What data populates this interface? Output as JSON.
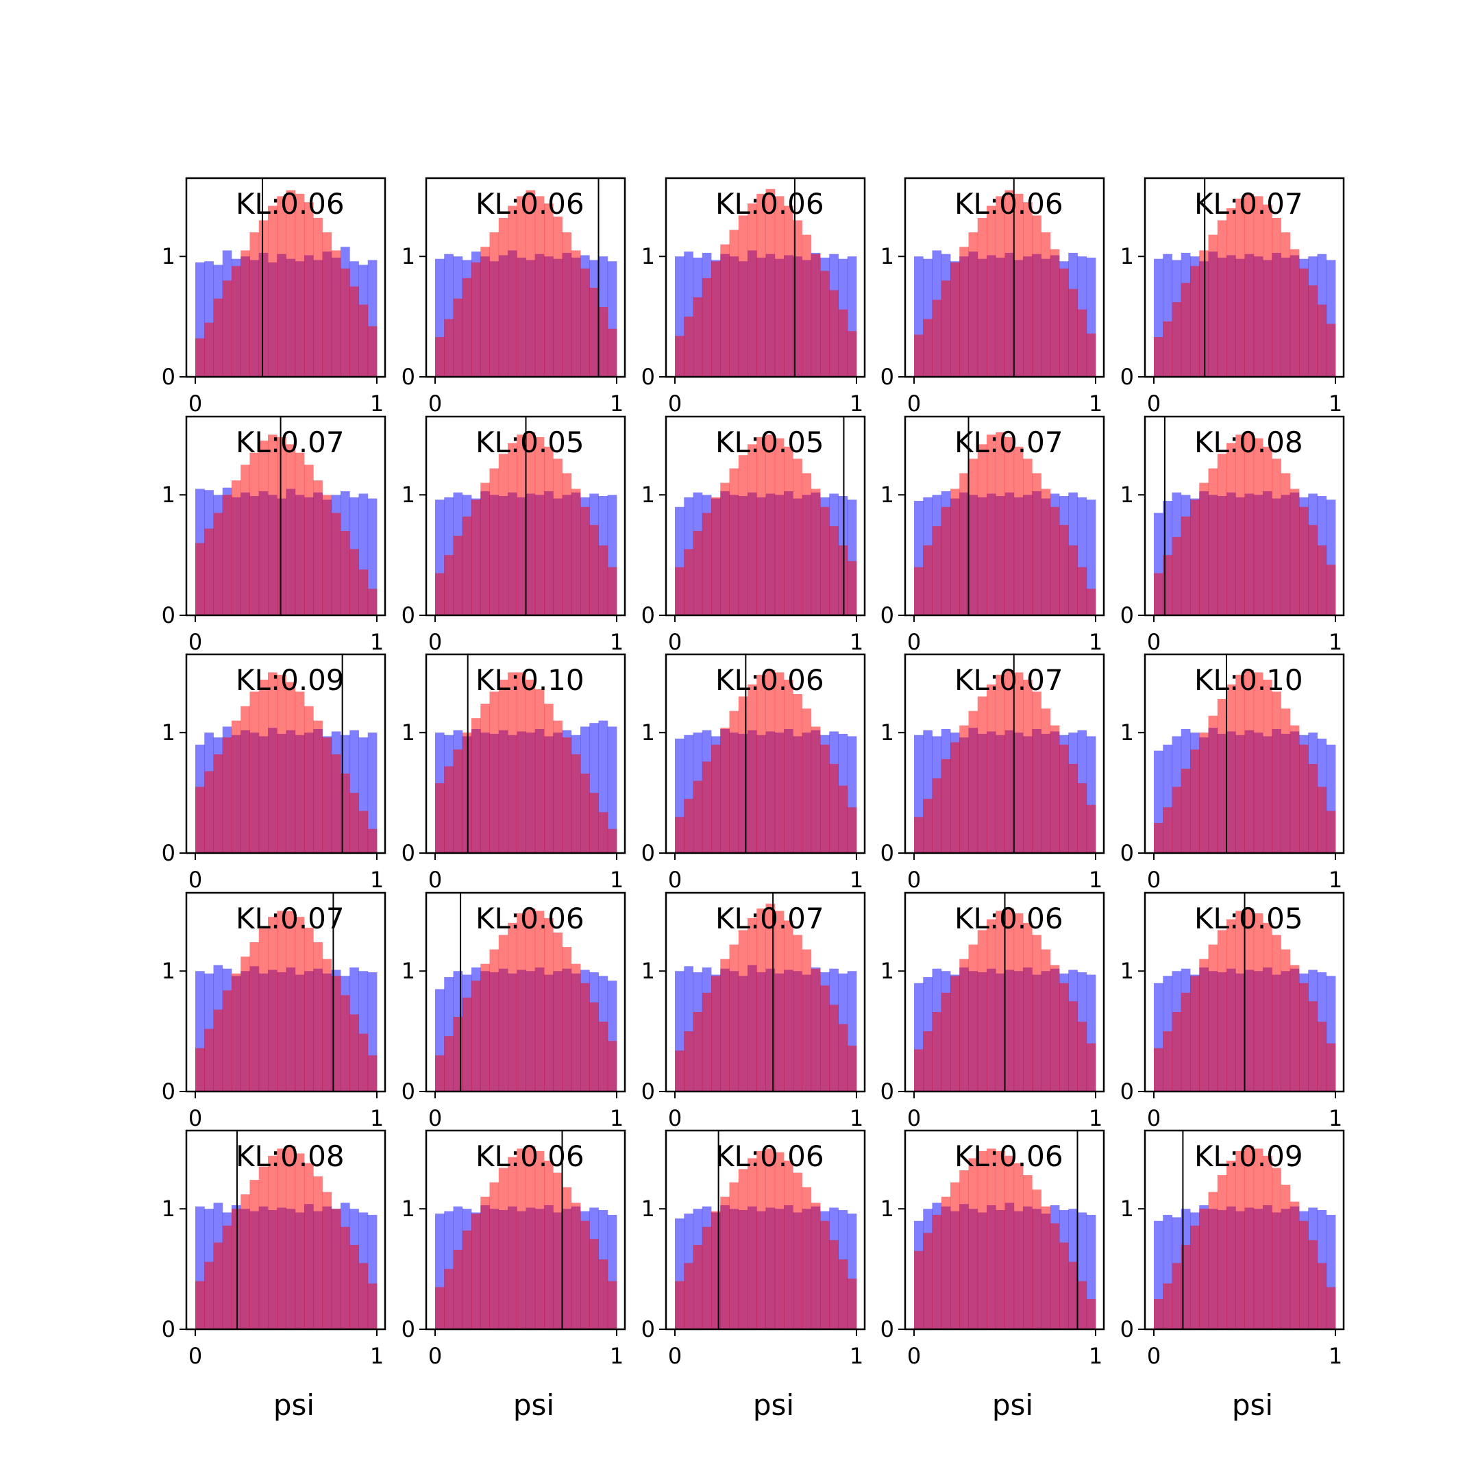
{
  "colors": {
    "series_a": "#0000ff",
    "series_b": "#ff0000",
    "bar_opacity": 0.5,
    "marker_line": "#000000",
    "frame": "#000000"
  },
  "chart_data": {
    "type": "bar",
    "layout": "5x5 grid of overlaid histograms",
    "bins": 20,
    "xlim": [
      0,
      1
    ],
    "ylim": [
      0,
      1.65
    ],
    "xticks": [
      "0",
      "1"
    ],
    "yticks": [
      "0",
      "1"
    ],
    "xlabel": "psi",
    "series_legend": [
      {
        "color": "#0000ff",
        "alpha": 0.5
      },
      {
        "color": "#ff0000",
        "alpha": 0.5
      }
    ],
    "panels": [
      {
        "kl": "KL:0.06",
        "marker_x": 0.37,
        "series_a": [
          0.95,
          0.96,
          0.93,
          1.05,
          0.98,
          1.0,
          0.97,
          1.03,
          0.95,
          1.02,
          0.98,
          0.96,
          1.01,
          0.97,
          1.04,
          0.99,
          1.08,
          0.96,
          0.93,
          0.97
        ],
        "series_b": [
          0.32,
          0.45,
          0.65,
          0.8,
          0.92,
          1.05,
          1.2,
          1.3,
          1.42,
          1.5,
          1.55,
          1.52,
          1.45,
          1.32,
          1.2,
          1.05,
          0.9,
          0.75,
          0.6,
          0.42
        ]
      },
      {
        "kl": "KL:0.06",
        "marker_x": 0.9,
        "series_a": [
          0.98,
          1.02,
          1.0,
          0.97,
          1.04,
          1.0,
          0.96,
          1.01,
          1.05,
          0.99,
          0.97,
          1.02,
          1.0,
          0.98,
          1.03,
          0.99,
          1.01,
          0.97,
          1.0,
          0.96
        ],
        "series_b": [
          0.33,
          0.48,
          0.65,
          0.82,
          0.95,
          1.08,
          1.2,
          1.32,
          1.42,
          1.5,
          1.55,
          1.5,
          1.44,
          1.33,
          1.2,
          1.05,
          0.9,
          0.74,
          0.58,
          0.4
        ]
      },
      {
        "kl": "KL:0.06",
        "marker_x": 0.66,
        "series_a": [
          1.0,
          1.04,
          0.99,
          1.03,
          0.97,
          1.02,
          1.0,
          0.96,
          1.05,
          0.99,
          1.02,
          0.98,
          1.01,
          1.0,
          0.97,
          1.03,
          0.99,
          1.02,
          0.98,
          1.0
        ],
        "series_b": [
          0.34,
          0.5,
          0.66,
          0.82,
          0.96,
          1.1,
          1.22,
          1.34,
          1.44,
          1.52,
          1.56,
          1.5,
          1.42,
          1.3,
          1.18,
          1.02,
          0.88,
          0.72,
          0.56,
          0.38
        ]
      },
      {
        "kl": "KL:0.06",
        "marker_x": 0.55,
        "series_a": [
          1.0,
          0.98,
          1.05,
          1.02,
          0.96,
          1.0,
          1.04,
          0.98,
          1.01,
          0.99,
          1.03,
          0.97,
          1.0,
          1.02,
          0.98,
          1.01,
          0.96,
          1.03,
          1.0,
          0.99
        ],
        "series_b": [
          0.35,
          0.48,
          0.64,
          0.8,
          0.95,
          1.08,
          1.2,
          1.32,
          1.42,
          1.5,
          1.55,
          1.52,
          1.45,
          1.34,
          1.2,
          1.06,
          0.9,
          0.73,
          0.56,
          0.36
        ]
      },
      {
        "kl": "KL:0.07",
        "marker_x": 0.28,
        "series_a": [
          0.98,
          1.02,
          0.97,
          1.03,
          1.0,
          0.96,
          1.04,
          0.99,
          1.01,
          0.98,
          1.02,
          1.0,
          0.97,
          1.03,
          0.99,
          1.01,
          0.98,
          1.0,
          1.02,
          0.97
        ],
        "series_b": [
          0.33,
          0.46,
          0.62,
          0.78,
          0.92,
          1.05,
          1.18,
          1.3,
          1.4,
          1.48,
          1.52,
          1.5,
          1.43,
          1.32,
          1.2,
          1.06,
          0.9,
          0.76,
          0.6,
          0.44
        ]
      },
      {
        "kl": "KL:0.07",
        "marker_x": 0.47,
        "series_a": [
          1.05,
          1.04,
          1.0,
          1.06,
          0.98,
          1.02,
          0.99,
          1.03,
          1.0,
          0.97,
          1.05,
          1.0,
          0.98,
          1.02,
          0.96,
          1.0,
          1.03,
          0.98,
          1.01,
          0.97
        ],
        "series_b": [
          0.6,
          0.72,
          0.85,
          1.0,
          1.12,
          1.25,
          1.35,
          1.45,
          1.5,
          1.48,
          1.42,
          1.35,
          1.25,
          1.12,
          1.0,
          0.85,
          0.7,
          0.55,
          0.38,
          0.22
        ]
      },
      {
        "kl": "KL:0.05",
        "marker_x": 0.5,
        "series_a": [
          0.96,
          0.98,
          1.02,
          1.0,
          0.97,
          1.03,
          1.0,
          0.99,
          1.02,
          0.98,
          1.01,
          1.0,
          1.03,
          0.97,
          1.0,
          1.02,
          0.98,
          1.01,
          0.99,
          1.0
        ],
        "series_b": [
          0.35,
          0.5,
          0.66,
          0.82,
          0.96,
          1.1,
          1.22,
          1.34,
          1.43,
          1.5,
          1.52,
          1.48,
          1.4,
          1.3,
          1.18,
          1.05,
          0.9,
          0.75,
          0.58,
          0.4
        ]
      },
      {
        "kl": "KL:0.05",
        "marker_x": 0.93,
        "series_a": [
          0.9,
          0.98,
          1.02,
          1.0,
          0.97,
          1.03,
          1.0,
          0.99,
          1.02,
          0.98,
          1.01,
          1.0,
          1.03,
          0.97,
          1.0,
          1.02,
          0.98,
          1.01,
          0.99,
          0.96
        ],
        "series_b": [
          0.4,
          0.55,
          0.7,
          0.85,
          0.98,
          1.1,
          1.22,
          1.33,
          1.42,
          1.48,
          1.5,
          1.47,
          1.4,
          1.3,
          1.18,
          1.05,
          0.9,
          0.74,
          0.58,
          0.45
        ]
      },
      {
        "kl": "KL:0.07",
        "marker_x": 0.3,
        "series_a": [
          0.95,
          0.98,
          1.0,
          1.03,
          0.97,
          1.02,
          1.0,
          0.98,
          1.01,
          0.99,
          1.02,
          0.98,
          1.0,
          1.03,
          0.97,
          1.01,
          0.99,
          1.02,
          0.98,
          0.96
        ],
        "series_b": [
          0.4,
          0.58,
          0.74,
          0.9,
          1.05,
          1.18,
          1.3,
          1.42,
          1.5,
          1.52,
          1.48,
          1.4,
          1.3,
          1.18,
          1.05,
          0.9,
          0.75,
          0.58,
          0.4,
          0.22
        ]
      },
      {
        "kl": "KL:0.08",
        "marker_x": 0.06,
        "series_a": [
          0.85,
          0.95,
          1.02,
          1.0,
          0.97,
          1.03,
          1.0,
          0.99,
          1.02,
          0.98,
          1.01,
          1.0,
          1.03,
          0.97,
          1.0,
          1.02,
          0.98,
          1.01,
          0.99,
          0.96
        ],
        "series_b": [
          0.35,
          0.5,
          0.65,
          0.82,
          0.96,
          1.1,
          1.22,
          1.34,
          1.43,
          1.5,
          1.52,
          1.47,
          1.4,
          1.3,
          1.18,
          1.05,
          0.9,
          0.75,
          0.58,
          0.42
        ]
      },
      {
        "kl": "KL:0.09",
        "marker_x": 0.81,
        "series_a": [
          0.9,
          1.0,
          0.96,
          1.05,
          0.98,
          1.02,
          1.0,
          0.97,
          1.04,
          0.99,
          1.02,
          0.98,
          1.0,
          1.03,
          0.97,
          1.01,
          0.98,
          1.02,
          0.96,
          1.0
        ],
        "series_b": [
          0.55,
          0.68,
          0.82,
          0.96,
          1.1,
          1.22,
          1.34,
          1.44,
          1.5,
          1.48,
          1.42,
          1.34,
          1.22,
          1.1,
          0.96,
          0.82,
          0.66,
          0.5,
          0.35,
          0.2
        ]
      },
      {
        "kl": "KL:0.10",
        "marker_x": 0.18,
        "series_a": [
          1.0,
          0.98,
          1.02,
          0.97,
          1.03,
          1.0,
          0.99,
          1.02,
          0.98,
          1.01,
          1.0,
          1.03,
          0.97,
          1.0,
          1.02,
          0.98,
          1.05,
          1.08,
          1.1,
          1.05
        ],
        "series_b": [
          0.58,
          0.72,
          0.86,
          1.0,
          1.12,
          1.24,
          1.34,
          1.44,
          1.5,
          1.5,
          1.44,
          1.36,
          1.24,
          1.1,
          0.96,
          0.82,
          0.66,
          0.5,
          0.34,
          0.2
        ]
      },
      {
        "kl": "KL:0.06",
        "marker_x": 0.39,
        "series_a": [
          0.95,
          0.98,
          1.0,
          1.02,
          0.97,
          1.03,
          1.0,
          0.99,
          1.02,
          0.98,
          1.01,
          1.0,
          1.03,
          0.97,
          1.0,
          1.02,
          0.98,
          1.01,
          0.99,
          0.97
        ],
        "series_b": [
          0.3,
          0.45,
          0.6,
          0.76,
          0.9,
          1.04,
          1.18,
          1.3,
          1.4,
          1.48,
          1.52,
          1.5,
          1.44,
          1.32,
          1.2,
          1.05,
          0.9,
          0.74,
          0.56,
          0.38
        ]
      },
      {
        "kl": "KL:0.07",
        "marker_x": 0.55,
        "series_a": [
          0.98,
          1.02,
          0.97,
          1.03,
          1.0,
          0.96,
          1.04,
          0.99,
          1.01,
          0.98,
          1.02,
          1.0,
          0.97,
          1.03,
          0.99,
          1.01,
          0.98,
          1.0,
          1.02,
          0.97
        ],
        "series_b": [
          0.3,
          0.45,
          0.62,
          0.78,
          0.92,
          1.06,
          1.18,
          1.3,
          1.4,
          1.48,
          1.52,
          1.5,
          1.44,
          1.34,
          1.2,
          1.06,
          0.9,
          0.74,
          0.58,
          0.4
        ]
      },
      {
        "kl": "KL:0.10",
        "marker_x": 0.4,
        "series_a": [
          0.85,
          0.9,
          0.97,
          1.03,
          1.0,
          0.96,
          1.04,
          0.99,
          1.01,
          0.98,
          1.02,
          1.0,
          0.97,
          1.03,
          0.99,
          1.01,
          0.98,
          1.0,
          0.95,
          0.9
        ],
        "series_b": [
          0.25,
          0.38,
          0.55,
          0.7,
          0.86,
          1.0,
          1.14,
          1.28,
          1.4,
          1.48,
          1.52,
          1.5,
          1.44,
          1.34,
          1.2,
          1.06,
          0.9,
          0.74,
          0.55,
          0.35
        ]
      },
      {
        "kl": "KL:0.07",
        "marker_x": 0.76,
        "series_a": [
          1.0,
          0.98,
          1.05,
          1.02,
          0.96,
          1.0,
          1.04,
          0.98,
          1.01,
          0.99,
          1.03,
          0.97,
          1.0,
          1.02,
          0.98,
          1.01,
          0.96,
          1.03,
          1.0,
          0.99
        ],
        "series_b": [
          0.36,
          0.52,
          0.68,
          0.84,
          0.98,
          1.12,
          1.24,
          1.36,
          1.45,
          1.5,
          1.5,
          1.45,
          1.36,
          1.24,
          1.1,
          0.96,
          0.8,
          0.64,
          0.48,
          0.3
        ]
      },
      {
        "kl": "KL:0.06",
        "marker_x": 0.14,
        "series_a": [
          0.85,
          0.95,
          1.0,
          0.97,
          1.03,
          1.0,
          0.99,
          1.02,
          0.98,
          1.01,
          1.0,
          1.03,
          0.97,
          1.0,
          1.02,
          0.98,
          1.01,
          0.99,
          0.96,
          0.92
        ],
        "series_b": [
          0.3,
          0.46,
          0.62,
          0.78,
          0.92,
          1.06,
          1.18,
          1.3,
          1.4,
          1.48,
          1.52,
          1.5,
          1.44,
          1.32,
          1.2,
          1.06,
          0.9,
          0.74,
          0.58,
          0.42
        ]
      },
      {
        "kl": "KL:0.07",
        "marker_x": 0.54,
        "series_a": [
          1.0,
          1.04,
          0.99,
          1.03,
          0.97,
          1.02,
          1.0,
          0.96,
          1.05,
          0.99,
          1.02,
          0.98,
          1.01,
          1.0,
          0.97,
          1.03,
          0.99,
          1.02,
          0.98,
          1.0
        ],
        "series_b": [
          0.34,
          0.5,
          0.66,
          0.82,
          0.96,
          1.1,
          1.22,
          1.34,
          1.44,
          1.52,
          1.56,
          1.5,
          1.42,
          1.3,
          1.18,
          1.02,
          0.88,
          0.72,
          0.56,
          0.38
        ]
      },
      {
        "kl": "KL:0.06",
        "marker_x": 0.5,
        "series_a": [
          0.9,
          0.95,
          1.02,
          1.0,
          0.97,
          1.03,
          1.0,
          0.99,
          1.02,
          0.98,
          1.01,
          1.0,
          1.03,
          0.97,
          1.0,
          1.02,
          0.98,
          1.01,
          0.99,
          0.97
        ],
        "series_b": [
          0.35,
          0.5,
          0.66,
          0.82,
          0.96,
          1.1,
          1.22,
          1.34,
          1.43,
          1.5,
          1.52,
          1.48,
          1.4,
          1.3,
          1.18,
          1.05,
          0.9,
          0.75,
          0.58,
          0.4
        ]
      },
      {
        "kl": "KL:0.05",
        "marker_x": 0.5,
        "series_a": [
          0.9,
          0.96,
          1.0,
          1.02,
          0.97,
          1.03,
          1.0,
          0.99,
          1.02,
          0.98,
          1.01,
          1.0,
          1.03,
          0.97,
          1.0,
          1.02,
          0.98,
          1.01,
          0.99,
          0.96
        ],
        "series_b": [
          0.36,
          0.5,
          0.66,
          0.82,
          0.96,
          1.1,
          1.22,
          1.34,
          1.43,
          1.5,
          1.52,
          1.48,
          1.4,
          1.3,
          1.18,
          1.05,
          0.9,
          0.75,
          0.58,
          0.4
        ]
      },
      {
        "kl": "KL:0.08",
        "marker_x": 0.23,
        "series_a": [
          1.02,
          1.0,
          1.05,
          0.97,
          1.03,
          1.0,
          0.98,
          1.02,
          0.99,
          1.01,
          1.0,
          0.97,
          1.04,
          0.98,
          1.02,
          1.0,
          1.05,
          1.0,
          0.97,
          0.95
        ],
        "series_b": [
          0.4,
          0.56,
          0.72,
          0.86,
          1.0,
          1.12,
          1.24,
          1.35,
          1.44,
          1.5,
          1.52,
          1.46,
          1.38,
          1.27,
          1.14,
          1.0,
          0.85,
          0.7,
          0.55,
          0.38
        ]
      },
      {
        "kl": "KL:0.06",
        "marker_x": 0.7,
        "series_a": [
          0.96,
          0.98,
          1.02,
          1.0,
          0.97,
          1.03,
          1.0,
          0.99,
          1.02,
          0.98,
          1.01,
          1.0,
          1.03,
          0.97,
          1.0,
          1.02,
          0.98,
          1.01,
          0.99,
          0.95
        ],
        "series_b": [
          0.35,
          0.5,
          0.66,
          0.82,
          0.96,
          1.1,
          1.22,
          1.34,
          1.43,
          1.5,
          1.52,
          1.48,
          1.4,
          1.3,
          1.18,
          1.05,
          0.9,
          0.75,
          0.58,
          0.4
        ]
      },
      {
        "kl": "KL:0.06",
        "marker_x": 0.24,
        "series_a": [
          0.92,
          0.96,
          1.0,
          1.02,
          0.97,
          1.03,
          1.0,
          0.99,
          1.02,
          0.98,
          1.01,
          1.0,
          1.03,
          0.97,
          1.0,
          1.02,
          0.98,
          1.01,
          0.99,
          0.96
        ],
        "series_b": [
          0.4,
          0.55,
          0.7,
          0.85,
          0.98,
          1.1,
          1.22,
          1.33,
          1.42,
          1.48,
          1.5,
          1.47,
          1.4,
          1.3,
          1.18,
          1.05,
          0.9,
          0.74,
          0.58,
          0.42
        ]
      },
      {
        "kl": "KL:0.06",
        "marker_x": 0.9,
        "series_a": [
          0.9,
          1.0,
          1.05,
          1.02,
          0.98,
          1.04,
          1.0,
          0.97,
          1.03,
          0.99,
          1.05,
          0.98,
          1.02,
          1.0,
          0.96,
          1.03,
          0.99,
          1.0,
          0.97,
          0.95
        ],
        "series_b": [
          0.65,
          0.8,
          0.95,
          1.1,
          1.22,
          1.32,
          1.42,
          1.48,
          1.5,
          1.48,
          1.44,
          1.38,
          1.28,
          1.16,
          1.02,
          0.88,
          0.72,
          0.56,
          0.4,
          0.25
        ]
      },
      {
        "kl": "KL:0.09",
        "marker_x": 0.16,
        "series_a": [
          0.9,
          0.95,
          0.93,
          1.0,
          0.97,
          1.03,
          1.0,
          0.99,
          1.02,
          0.98,
          1.01,
          1.0,
          1.03,
          0.97,
          1.0,
          1.02,
          0.98,
          1.01,
          0.99,
          0.95
        ],
        "series_b": [
          0.25,
          0.38,
          0.55,
          0.7,
          0.86,
          1.0,
          1.14,
          1.28,
          1.4,
          1.48,
          1.52,
          1.5,
          1.44,
          1.34,
          1.2,
          1.06,
          0.9,
          0.74,
          0.55,
          0.35
        ]
      }
    ]
  }
}
